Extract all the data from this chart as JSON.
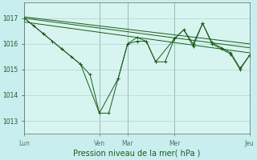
{
  "background_color": "#c8eef0",
  "plot_bg_color": "#d8f4f0",
  "grid_color": "#a8d8d0",
  "line_color": "#1a5c1a",
  "title": "Pression niveau de la mer( hPa )",
  "ylim": [
    1012.5,
    1017.6
  ],
  "yticks": [
    1013,
    1014,
    1015,
    1016,
    1017
  ],
  "day_positions": [
    0,
    8,
    11,
    16,
    24
  ],
  "day_labels": [
    "Lun",
    "Ven",
    "Mar",
    "Mer",
    "Jeu"
  ],
  "xlim": [
    0,
    24
  ],
  "series_main": {
    "x": [
      0,
      1,
      2,
      3,
      4,
      5,
      6,
      7,
      8,
      9,
      10,
      11,
      12,
      13,
      14,
      15,
      16,
      17,
      18,
      19,
      20,
      21,
      22,
      23,
      24
    ],
    "y": [
      1017.0,
      1016.7,
      1016.4,
      1016.1,
      1015.8,
      1015.5,
      1015.2,
      1014.8,
      1013.3,
      1013.3,
      1014.65,
      1016.0,
      1016.25,
      1016.1,
      1015.3,
      1015.3,
      1016.2,
      1016.55,
      1016.0,
      1016.8,
      1016.05,
      1015.85,
      1015.65,
      1015.05,
      1015.55
    ]
  },
  "series_sparse": {
    "x": [
      0,
      2,
      4,
      6,
      8,
      10,
      11,
      12,
      13,
      14,
      16,
      17,
      18,
      19,
      20,
      21,
      22,
      23,
      24
    ],
    "y": [
      1017.0,
      1016.4,
      1015.8,
      1015.2,
      1013.3,
      1014.65,
      1016.0,
      1016.1,
      1016.1,
      1015.3,
      1016.2,
      1016.55,
      1015.9,
      1016.8,
      1016.0,
      1015.8,
      1015.6,
      1015.0,
      1015.55
    ]
  },
  "trend1": {
    "x": [
      0,
      24
    ],
    "y": [
      1017.05,
      1016.0
    ]
  },
  "trend2": {
    "x": [
      0,
      24
    ],
    "y": [
      1017.0,
      1015.85
    ]
  },
  "trend3": {
    "x": [
      0,
      24
    ],
    "y": [
      1016.85,
      1015.65
    ]
  }
}
